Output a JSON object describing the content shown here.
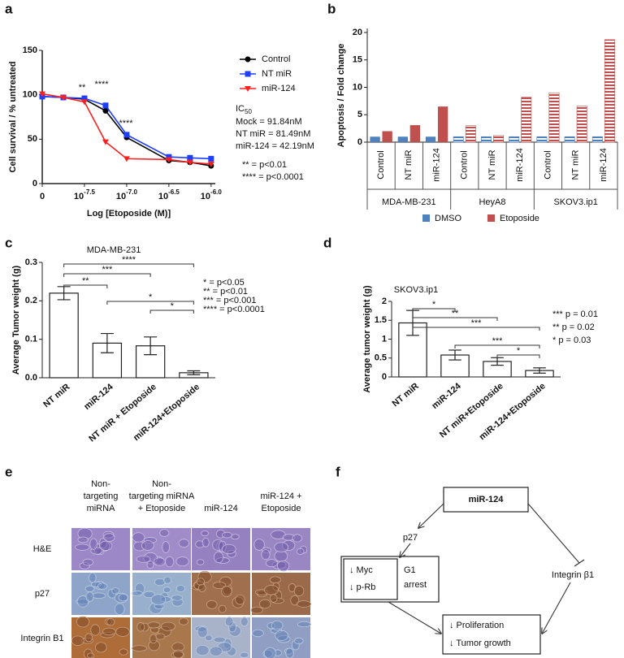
{
  "chart_data": [
    {
      "label": "a",
      "type": "line",
      "x_label": "Log [Etoposide (M)]",
      "y_label": "Cell survival / % untreated",
      "x": [
        -8,
        -7.75,
        -7.5,
        -7.25,
        -7,
        -6.5,
        -6.25,
        -6
      ],
      "series": [
        {
          "name": "Control",
          "color": "#000000",
          "marker": "circle",
          "values": [
            98,
            97,
            95,
            82,
            52,
            26,
            24,
            20
          ]
        },
        {
          "name": "NT miR",
          "color": "#1f3fff",
          "marker": "square",
          "values": [
            98,
            97,
            96,
            88,
            55,
            30,
            29,
            28
          ]
        },
        {
          "name": "miR-124",
          "color": "#ff2020",
          "marker": "triangle",
          "values": [
            101,
            97,
            92,
            47,
            28,
            27,
            24,
            22
          ]
        }
      ],
      "xlim": [
        -8,
        -5.95
      ],
      "xticks": [
        {
          "value": -8,
          "label": "0"
        },
        {
          "value": -7.5,
          "label": "10-7.5"
        },
        {
          "value": -7,
          "label": "10-7.0"
        },
        {
          "value": -6.5,
          "label": "10-6.5"
        },
        {
          "value": -6,
          "label": "10-6.0"
        }
      ],
      "ylim": [
        0,
        150
      ],
      "yticks": [
        0,
        50,
        100,
        150
      ],
      "annotations": [
        "**",
        "****",
        "****"
      ],
      "ic50_title": "IC50",
      "ic50_lines": [
        "Mock = 91.84nM",
        "NT miR = 81.49nM",
        "miR-124 = 42.19nM"
      ],
      "notes": [
        "** = p<0.01",
        "**** = p<0.0001"
      ]
    },
    {
      "label": "b",
      "type": "grouped-bar",
      "y_label": "Apoptosis / Fold change",
      "categories": [
        "Control",
        "NT miR",
        "miR-124",
        "Control",
        "NT miR",
        "miR-124",
        "Control",
        "NT miR",
        "miR-124"
      ],
      "groups": [
        {
          "name": "MDA-MB-231",
          "pattern": "solid"
        },
        {
          "name": "HeyA8",
          "pattern": "striped"
        },
        {
          "name": "SKOV3.ip1",
          "pattern": "striped"
        }
      ],
      "series": [
        {
          "name": "DMSO",
          "color": "#4f81bd",
          "values": [
            1,
            1,
            1,
            1,
            1,
            1,
            1,
            1,
            1
          ]
        },
        {
          "name": "Etoposide",
          "color": "#c0504d",
          "values": [
            2,
            3.1,
            6.5,
            3,
            1.2,
            8.2,
            9,
            6.6,
            18.7
          ]
        }
      ],
      "ylim": [
        0,
        20
      ],
      "yticks": [
        0,
        5,
        10,
        15,
        20
      ]
    },
    {
      "label": "c",
      "type": "bar",
      "title": "MDA-MB-231",
      "y_label": "Average Tumor weight (g)",
      "categories": [
        "NT miR",
        "miR-124",
        "NT miR + Etoposide",
        "miR-124+Etoposide"
      ],
      "values": [
        0.22,
        0.09,
        0.083,
        0.013
      ],
      "errors": [
        0.017,
        0.025,
        0.023,
        0.005
      ],
      "color": "#ffffff",
      "ylim": [
        0,
        0.3
      ],
      "yticks": [
        {
          "value": 0,
          "label": "0.0"
        },
        0.1,
        0.2,
        0.3
      ],
      "brackets": [
        "****",
        "***",
        "**",
        "*",
        "*"
      ],
      "notes": [
        "* = p<0.05",
        "** = p<0.01",
        "*** = p<0.001",
        "**** = p<0.0001"
      ]
    },
    {
      "label": "d",
      "type": "bar",
      "title": "SKOV3.ip1",
      "y_label": "Average tumor weight (g)",
      "categories": [
        "NT miR",
        "miR-124",
        "NT miR+Etoposide",
        "miR-124+Etoposide"
      ],
      "values": [
        1.43,
        0.58,
        0.41,
        0.17
      ],
      "errors": [
        0.33,
        0.13,
        0.1,
        0.07
      ],
      "color": "#ffffff",
      "ylim": [
        0,
        2
      ],
      "yticks": [
        0,
        0.5,
        1,
        1.5,
        2
      ],
      "brackets": [
        "*",
        "**",
        "***",
        "***",
        "*"
      ],
      "notes": [
        "*** p = 0.01",
        "** p = 0.02",
        "* p = 0.03"
      ]
    }
  ],
  "panel_e": {
    "label": "e",
    "columns": [
      [
        "Non-",
        "targeting",
        "miRNA"
      ],
      [
        "Non-",
        "targeting miRNA",
        "+ Etoposide"
      ],
      [
        "miR-124"
      ],
      [
        "miR-124 +",
        "Etoposide"
      ]
    ],
    "rows": [
      "H&E",
      "p27",
      "Integrin B1"
    ]
  },
  "panel_f": {
    "label": "f",
    "mir124": "miR-124",
    "p27": "p27",
    "myc": "↓ Myc",
    "prb": "↓ p-Rb",
    "arrest": [
      "G1",
      "arrest"
    ],
    "integrin": "Integrin β1",
    "outcome": [
      "↓ Proliferation",
      "↓ Tumor growth"
    ]
  }
}
